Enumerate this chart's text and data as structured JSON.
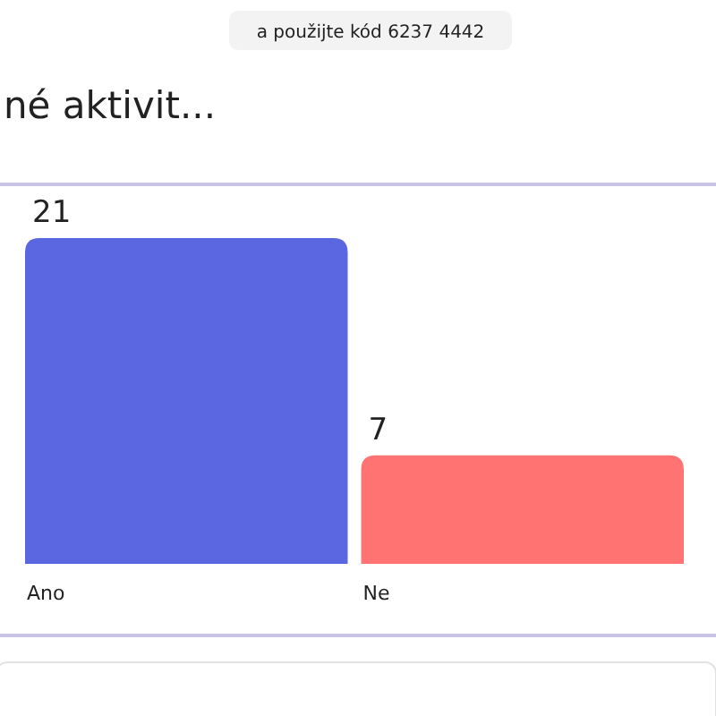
{
  "chart_data": {
    "type": "bar",
    "title": "né aktivit...",
    "annotations": [
      "a použijte kód 6237 4442"
    ],
    "categories": [
      "Ano",
      "Ne"
    ],
    "values": [
      21,
      7
    ],
    "colors": [
      "#5a67e0",
      "#ff7373"
    ],
    "data_labels": true
  }
}
